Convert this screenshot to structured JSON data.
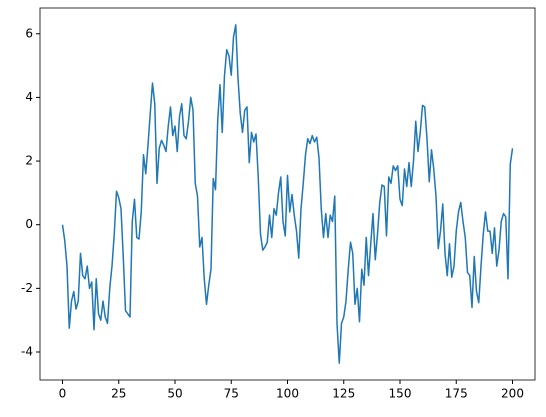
{
  "chart_data": {
    "type": "line",
    "x": [
      0,
      1,
      2,
      3,
      4,
      5,
      6,
      7,
      8,
      9,
      10,
      11,
      12,
      13,
      14,
      15,
      16,
      17,
      18,
      19,
      20,
      21,
      22,
      23,
      24,
      25,
      26,
      27,
      28,
      29,
      30,
      31,
      32,
      33,
      34,
      35,
      36,
      37,
      38,
      39,
      40,
      41,
      42,
      43,
      44,
      45,
      46,
      47,
      48,
      49,
      50,
      51,
      52,
      53,
      54,
      55,
      56,
      57,
      58,
      59,
      60,
      61,
      62,
      63,
      64,
      65,
      66,
      67,
      68,
      69,
      70,
      71,
      72,
      73,
      74,
      75,
      76,
      77,
      78,
      79,
      80,
      81,
      82,
      83,
      84,
      85,
      86,
      87,
      88,
      89,
      90,
      91,
      92,
      93,
      94,
      95,
      96,
      97,
      98,
      99,
      100,
      101,
      102,
      103,
      104,
      105,
      106,
      107,
      108,
      109,
      110,
      111,
      112,
      113,
      114,
      115,
      116,
      117,
      118,
      119,
      120,
      121,
      122,
      123,
      124,
      125,
      126,
      127,
      128,
      129,
      130,
      131,
      132,
      133,
      134,
      135,
      136,
      137,
      138,
      139,
      140,
      141,
      142,
      143,
      144,
      145,
      146,
      147,
      148,
      149,
      150,
      151,
      152,
      153,
      154,
      155,
      156,
      157,
      158,
      159,
      160,
      161,
      162,
      163,
      164,
      165,
      166,
      167,
      168,
      169,
      170,
      171,
      172,
      173,
      174,
      175,
      176,
      177,
      178,
      179,
      180,
      181,
      182,
      183,
      184,
      185,
      186,
      187,
      188,
      189,
      190,
      191,
      192,
      193,
      194,
      195,
      196,
      197,
      198,
      199,
      200
    ],
    "series": [
      {
        "color": "#1f77b4",
        "values": [
          0.0,
          -0.5,
          -1.3,
          -3.25,
          -2.4,
          -2.1,
          -2.65,
          -2.4,
          -0.9,
          -1.6,
          -1.7,
          -1.3,
          -2.0,
          -1.8,
          -3.3,
          -1.7,
          -2.8,
          -3.0,
          -2.4,
          -2.9,
          -3.1,
          -2.0,
          -1.3,
          -0.3,
          1.05,
          0.85,
          0.5,
          -1.0,
          -2.7,
          -2.8,
          -2.9,
          0.1,
          0.8,
          -0.4,
          -0.45,
          0.4,
          2.2,
          1.6,
          2.5,
          3.5,
          4.45,
          3.8,
          1.3,
          2.4,
          2.65,
          2.5,
          2.3,
          3.1,
          3.7,
          2.8,
          3.1,
          2.3,
          3.4,
          3.8,
          2.8,
          2.7,
          3.25,
          4.0,
          3.6,
          1.3,
          0.9,
          -0.7,
          -0.4,
          -1.7,
          -2.5,
          -1.9,
          -1.4,
          1.45,
          1.1,
          3.3,
          4.4,
          2.9,
          4.7,
          5.5,
          5.3,
          4.7,
          5.9,
          6.28,
          4.6,
          3.5,
          2.9,
          3.6,
          3.7,
          1.95,
          2.9,
          2.6,
          2.85,
          1.5,
          -0.3,
          -0.8,
          -0.7,
          -0.55,
          0.3,
          -0.4,
          0.5,
          0.3,
          1.0,
          1.5,
          0.1,
          -0.35,
          1.55,
          0.4,
          0.95,
          0.3,
          -0.2,
          -1.05,
          0.5,
          1.3,
          2.2,
          2.7,
          2.55,
          2.8,
          2.6,
          2.75,
          2.1,
          0.5,
          -0.4,
          0.35,
          -0.4,
          0.3,
          0.1,
          0.9,
          -3.1,
          -4.35,
          -3.1,
          -2.9,
          -2.4,
          -1.4,
          -0.55,
          -0.9,
          -2.5,
          -2.0,
          -3.05,
          -1.4,
          -1.9,
          -0.4,
          -1.6,
          -0.6,
          0.35,
          -1.1,
          -0.3,
          0.7,
          1.25,
          1.2,
          -0.35,
          1.5,
          1.3,
          1.85,
          1.7,
          1.85,
          0.8,
          0.6,
          1.75,
          1.2,
          1.95,
          1.2,
          2.0,
          3.25,
          2.3,
          2.9,
          3.75,
          3.7,
          2.7,
          1.35,
          2.35,
          1.75,
          0.9,
          -0.75,
          -0.2,
          0.65,
          -0.9,
          -1.6,
          -0.6,
          -1.65,
          -1.3,
          -0.2,
          0.4,
          0.7,
          0.1,
          -0.4,
          -1.5,
          -1.6,
          -2.6,
          -1.0,
          -2.1,
          -2.45,
          -1.3,
          -0.3,
          0.4,
          -0.2,
          -0.2,
          -0.9,
          -0.1,
          -1.3,
          -0.8,
          0.1,
          0.35,
          0.25,
          -1.7,
          1.9,
          2.4
        ]
      }
    ],
    "xlim": [
      -10,
      210
    ],
    "xticks": [
      0,
      25,
      50,
      75,
      100,
      125,
      150,
      175,
      200
    ],
    "ylim": [
      -4.88,
      6.81
    ],
    "yticks": [
      -4,
      -2,
      0,
      2,
      4,
      6
    ],
    "grid": false
  }
}
